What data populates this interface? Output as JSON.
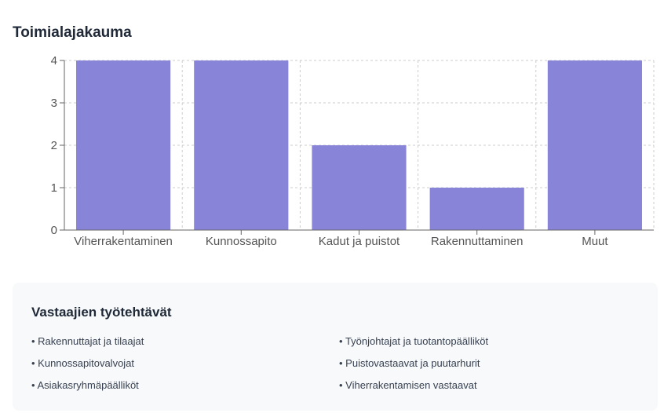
{
  "chart_title": "Toimialajakauma",
  "chart_data": {
    "type": "bar",
    "title": "Toimialajakauma",
    "categories": [
      "Viherrakentaminen",
      "Kunnossapito",
      "Kadut ja puistot",
      "Rakennuttaminen",
      "Muut"
    ],
    "values": [
      4,
      4,
      2,
      1,
      4
    ],
    "yticks": [
      0,
      1,
      2,
      3,
      4
    ],
    "ylim": [
      0,
      4
    ],
    "xlabel": "",
    "ylabel": "",
    "grid": true,
    "bar_color": "#8884d8",
    "grid_color": "#cccccc"
  },
  "info_panel": {
    "title": "Vastaajien työtehtävät",
    "items": [
      "Rakennuttajat ja tilaajat",
      "Työnjohtajat ja tuotantopäälliköt",
      "Kunnossapitovalvojat",
      "Puistovastaavat ja puutarhurit",
      "Asiakasryhmäpäälliköt",
      "Viherrakentamisen vastaavat"
    ]
  }
}
